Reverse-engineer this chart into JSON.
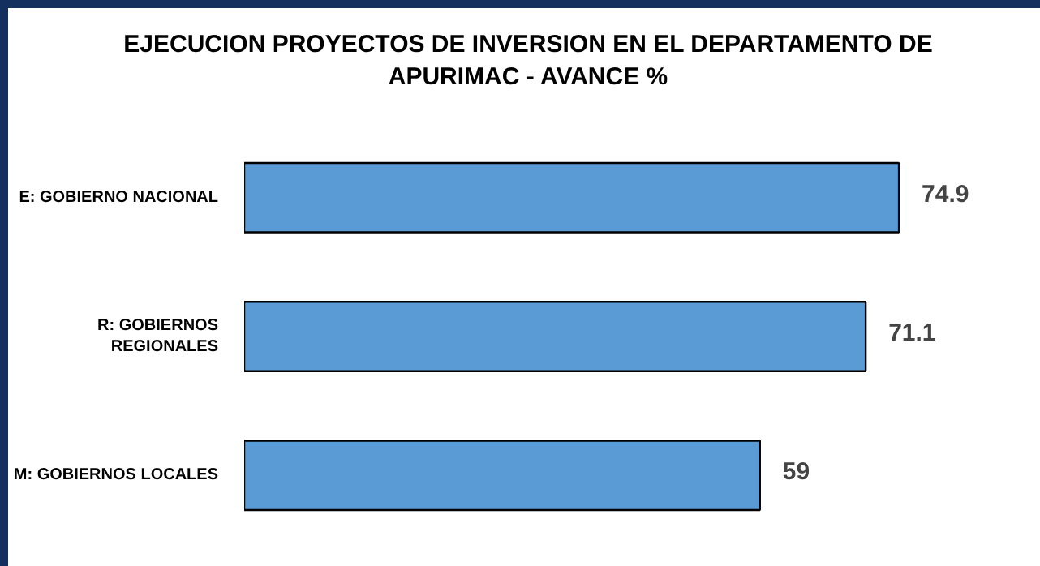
{
  "chart_data": {
    "type": "bar",
    "orientation": "horizontal",
    "title": "EJECUCION PROYECTOS DE INVERSION  EN EL DEPARTAMENTO DE\nAPURIMAC - AVANCE %",
    "categories": [
      "E: GOBIERNO NACIONAL",
      "R: GOBIERNOS\nREGIONALES",
      "M: GOBIERNOS LOCALES"
    ],
    "values": [
      74.9,
      71.1,
      59
    ],
    "color": "#5b9bd5",
    "data_labels": true,
    "grid": false
  }
}
